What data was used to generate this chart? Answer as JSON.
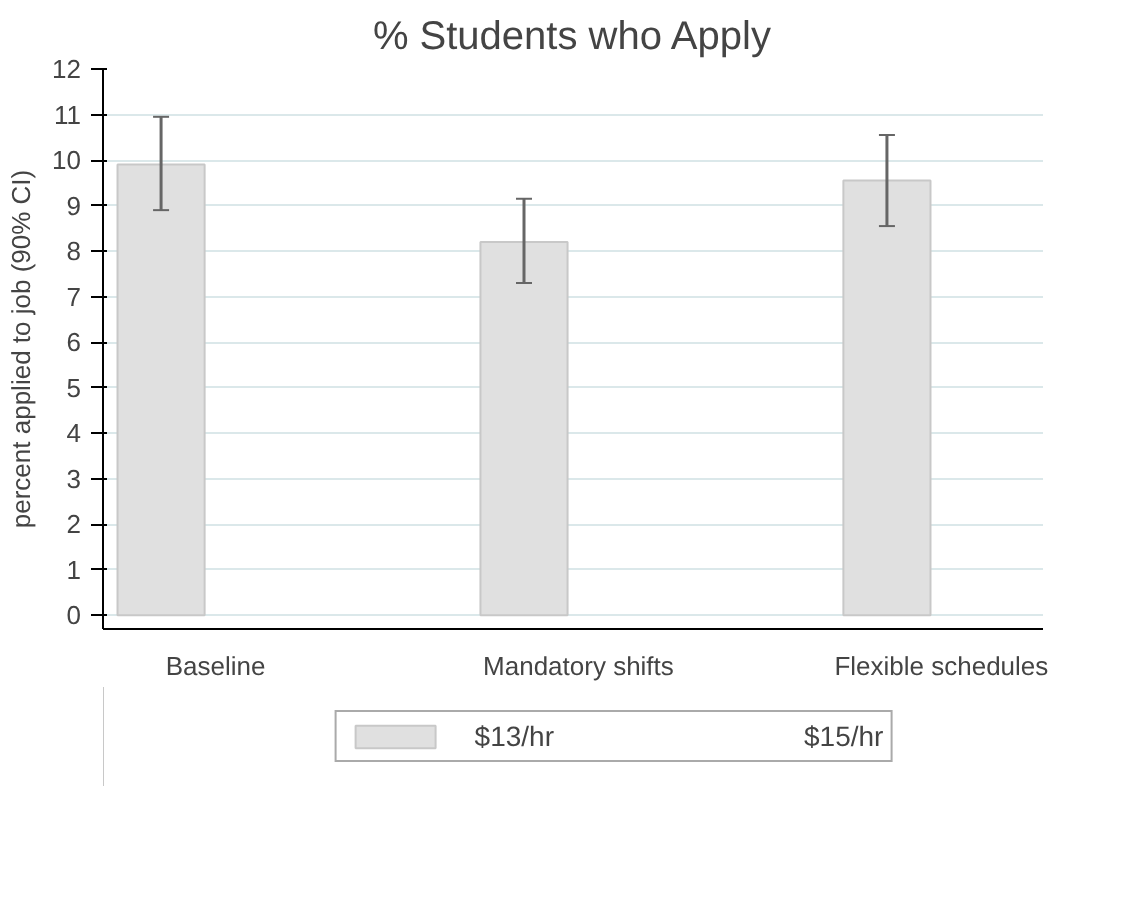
{
  "chart_data": {
    "type": "bar",
    "title": "% Students who Apply",
    "ylabel": "percent applied to job (90% CI)",
    "categories": [
      "Baseline",
      "Mandatory shifts",
      "Flexible schedules"
    ],
    "series": [
      {
        "name": "$13/hr",
        "color": "#e0e0e0",
        "values": [
          9.9,
          8.2,
          9.55
        ],
        "errors": [
          [
            8.9,
            10.95
          ],
          [
            7.3,
            9.15
          ],
          [
            8.55,
            10.55
          ]
        ]
      },
      {
        "name": "$15/hr",
        "values": [
          null,
          null,
          null
        ]
      }
    ],
    "ylim": [
      -0.3,
      12
    ],
    "yticks": [
      0,
      1,
      2,
      3,
      4,
      5,
      6,
      7,
      8,
      9,
      10,
      11,
      12
    ],
    "grid": "y",
    "legend": "bottom"
  }
}
